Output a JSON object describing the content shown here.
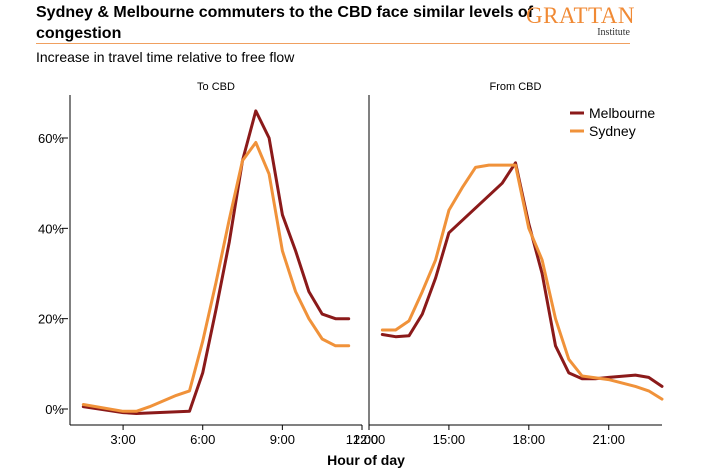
{
  "header": {
    "title": "Sydney & Melbourne commuters to the CBD face similar levels of congestion",
    "subtitle": "Increase in travel time relative to free flow",
    "logo_text": "GRATTAN",
    "logo_subtext": "Institute"
  },
  "colors": {
    "melbourne": "#8b1a1a",
    "sydney": "#f0923a",
    "axis": "#000000",
    "title_rule": "#f0a060"
  },
  "chart_data": {
    "type": "line",
    "xlabel": "Hour of day",
    "ylabel": "",
    "ylim": [
      0,
      0.7
    ],
    "grid": false,
    "legend_position": "top-right",
    "y_ticks": [
      {
        "value": 0,
        "label": "0%"
      },
      {
        "value": 0.2,
        "label": "20%"
      },
      {
        "value": 0.4,
        "label": "40%"
      },
      {
        "value": 0.6,
        "label": "60%"
      }
    ],
    "panels": [
      {
        "title": "To CBD",
        "xlim": [
          1.0,
          12.0
        ],
        "x_ticks": [
          {
            "value": 3,
            "label": "3:00"
          },
          {
            "value": 6,
            "label": "6:00"
          },
          {
            "value": 9,
            "label": "9:00"
          },
          {
            "value": 12,
            "label": "12:00"
          }
        ],
        "series": [
          {
            "name": "Melbourne",
            "color": "#8b1a1a",
            "x": [
              1.5,
              3.0,
              3.5,
              5.5,
              6.0,
              6.5,
              7.0,
              7.5,
              8.0,
              8.5,
              9.0,
              9.5,
              10.0,
              10.5,
              11.0,
              11.5
            ],
            "y": [
              0.005,
              -0.008,
              -0.01,
              -0.005,
              0.08,
              0.22,
              0.37,
              0.55,
              0.66,
              0.6,
              0.43,
              0.35,
              0.26,
              0.21,
              0.2,
              0.2
            ]
          },
          {
            "name": "Sydney",
            "color": "#f0923a",
            "x": [
              1.5,
              3.0,
              3.5,
              4.0,
              5.0,
              5.5,
              6.0,
              6.5,
              7.0,
              7.5,
              8.0,
              8.5,
              9.0,
              9.5,
              10.0,
              10.5,
              11.0,
              11.5
            ],
            "y": [
              0.01,
              -0.005,
              -0.005,
              0.005,
              0.03,
              0.04,
              0.15,
              0.28,
              0.42,
              0.55,
              0.59,
              0.52,
              0.35,
              0.26,
              0.2,
              0.155,
              0.14,
              0.14
            ]
          }
        ]
      },
      {
        "title": "From CBD",
        "xlim": [
          12.0,
          23.0
        ],
        "x_ticks": [
          {
            "value": 12,
            "label": "12:00"
          },
          {
            "value": 15,
            "label": "15:00"
          },
          {
            "value": 18,
            "label": "18:00"
          },
          {
            "value": 21,
            "label": "21:00"
          }
        ],
        "series": [
          {
            "name": "Melbourne",
            "color": "#8b1a1a",
            "x": [
              12.5,
              13.0,
              13.5,
              14.0,
              14.5,
              15.0,
              17.0,
              17.5,
              18.0,
              18.5,
              19.0,
              19.5,
              20.0,
              20.5,
              21.0,
              22.0,
              22.5,
              23.0
            ],
            "y": [
              0.165,
              0.16,
              0.162,
              0.21,
              0.29,
              0.39,
              0.5,
              0.545,
              0.41,
              0.3,
              0.14,
              0.08,
              0.067,
              0.067,
              0.07,
              0.075,
              0.07,
              0.05
            ]
          },
          {
            "name": "Sydney",
            "color": "#f0923a",
            "x": [
              12.5,
              13.0,
              13.5,
              14.0,
              14.5,
              15.0,
              15.5,
              16.0,
              16.5,
              17.0,
              17.5,
              18.0,
              18.5,
              19.0,
              19.5,
              20.0,
              21.0,
              22.0,
              22.5,
              23.0
            ],
            "y": [
              0.175,
              0.175,
              0.195,
              0.26,
              0.33,
              0.44,
              0.49,
              0.535,
              0.54,
              0.54,
              0.54,
              0.4,
              0.33,
              0.2,
              0.11,
              0.073,
              0.065,
              0.05,
              0.04,
              0.022
            ]
          }
        ]
      }
    ]
  }
}
